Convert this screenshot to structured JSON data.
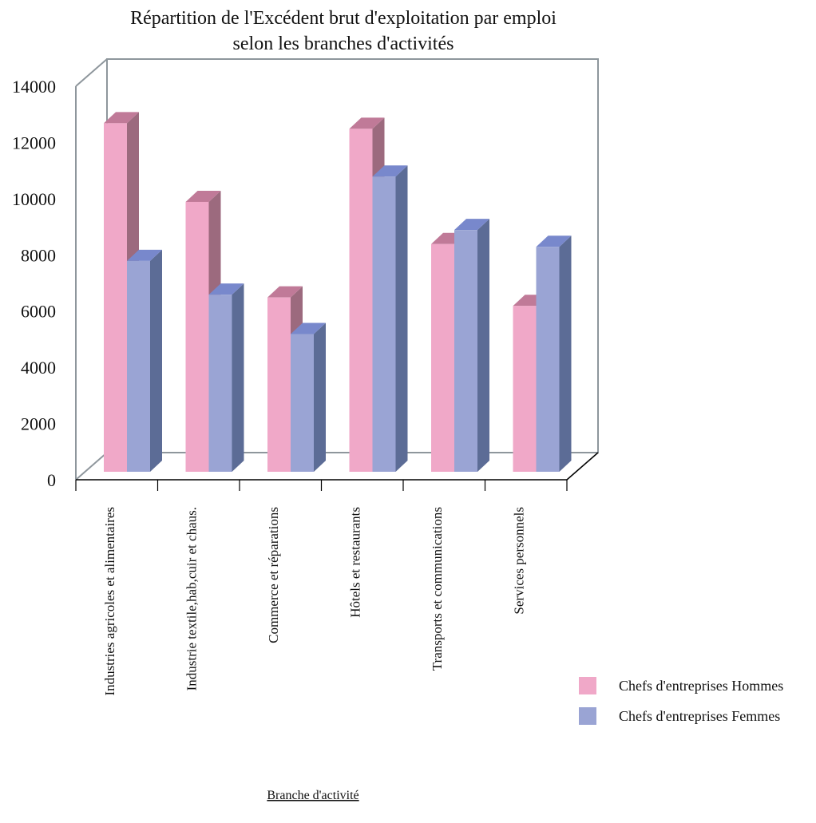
{
  "chart_data": {
    "type": "bar",
    "title_lines": [
      "Répartition de l'Excédent brut d'exploitation par emploi",
      "selon les branches d'activités"
    ],
    "xlabel": "Branche d'activité",
    "ylabel": "",
    "ylim": [
      0,
      14000
    ],
    "yticks": [
      0,
      2000,
      4000,
      6000,
      8000,
      10000,
      12000,
      14000
    ],
    "categories": [
      "Industries agricoles et alimentaires",
      "Industrie textile,hab,cuir et chaus.",
      "Commerce et réparations",
      "Hôtels et restaurants",
      "Transports et communications",
      "Services personnels"
    ],
    "series": [
      {
        "name": "Chefs d'entreprises Hommes",
        "values": [
          12400,
          9600,
          6200,
          12200,
          8100,
          5900
        ],
        "color": "#f0a8c8",
        "side_color": "#9c6a7e",
        "top_color": "#c07a98"
      },
      {
        "name": "Chefs d'entreprises Femmes",
        "values": [
          7500,
          6300,
          4900,
          10500,
          8600,
          8000
        ],
        "color": "#9aa4d4",
        "side_color": "#5c6c96",
        "top_color": "#7888cc"
      }
    ],
    "legend_position": "right",
    "grid": false
  }
}
